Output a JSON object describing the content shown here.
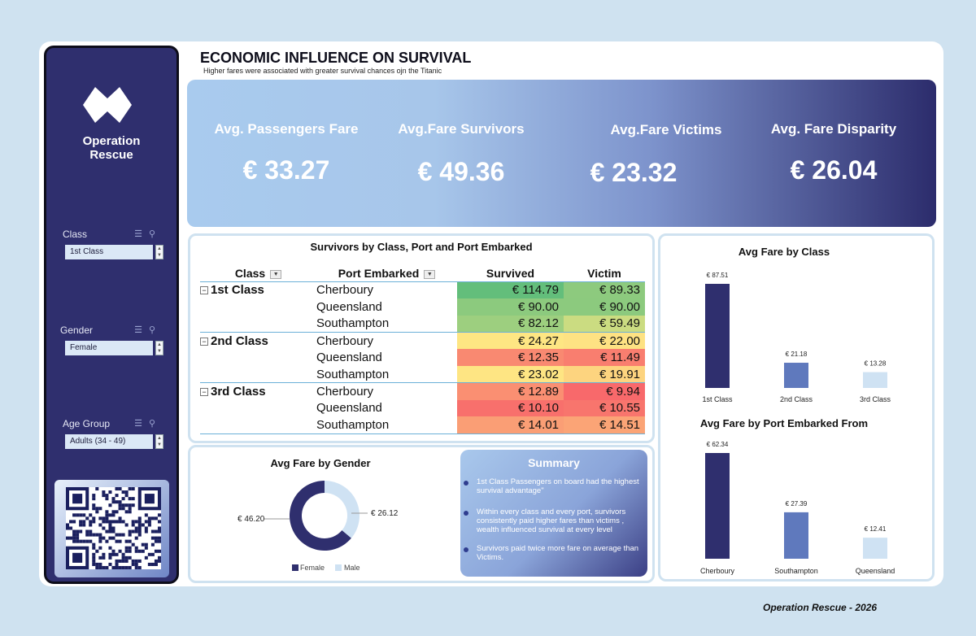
{
  "sidebar": {
    "brand": "Operation Rescue",
    "brand_lines": [
      "Operation",
      "Rescue"
    ],
    "slicers": [
      {
        "label": "Class",
        "value": "1st Class"
      },
      {
        "label": "Gender",
        "value": "Female"
      },
      {
        "label": "Age Group",
        "value": "Adults (34 - 49)"
      }
    ]
  },
  "header": {
    "title": "ECONOMIC INFLUENCE ON SURVIVAL",
    "subtitle": "Higher fares were associated with greater survival chances ojn the Titanic"
  },
  "kpis": [
    {
      "label": "Avg. Passengers Fare",
      "value": "€ 33.27"
    },
    {
      "label": "Avg.Fare Survivors",
      "value": "€ 49.36"
    },
    {
      "label": "Avg.Fare Victims",
      "value": "€ 23.32"
    },
    {
      "label": "Avg. Fare Disparity",
      "value": "€ 26.04"
    }
  ],
  "colors": {
    "navy": "#2f2f6e",
    "mid": "#5f79bd",
    "light": "#cfe2f3"
  },
  "pivot": {
    "title": "Survivors by Class, Port and Port Embarked",
    "headers": {
      "class": "Class",
      "port": "Port Embarked",
      "survived": "Survived",
      "victim": "Victim"
    },
    "rows": [
      {
        "cls": "1st Class",
        "port": "Cherboury",
        "survived": "€ 114.79",
        "victim": "€ 89.33",
        "sc": "#63be7b",
        "vc": "#8dca7e"
      },
      {
        "cls": "",
        "port": "Queensland",
        "survived": "€ 90.00",
        "victim": "€ 90.00",
        "sc": "#8cca7e",
        "vc": "#8cca7e"
      },
      {
        "cls": "",
        "port": "Southampton",
        "survived": "€ 82.12",
        "victim": "€ 59.49",
        "sc": "#9dcf7f",
        "vc": "#cbdc81"
      },
      {
        "cls": "2nd Class",
        "port": "Cherboury",
        "survived": "€ 24.27",
        "victim": "€ 22.00",
        "sc": "#fee683",
        "vc": "#fee283"
      },
      {
        "cls": "",
        "port": "Queensland",
        "survived": "€ 12.35",
        "victim": "€ 11.49",
        "sc": "#f98971",
        "vc": "#f97e6f"
      },
      {
        "cls": "",
        "port": "Southampton",
        "survived": "€ 23.02",
        "victim": "€ 19.91",
        "sc": "#fee583",
        "vc": "#fdd47f"
      },
      {
        "cls": "3rd Class",
        "port": "Cherboury",
        "survived": "€ 12.89",
        "victim": "€ 9.94",
        "sc": "#fa8f72",
        "vc": "#f8696b"
      },
      {
        "cls": "",
        "port": "Queensland",
        "survived": "€ 10.10",
        "victim": "€ 10.55",
        "sc": "#f8706c",
        "vc": "#f8756d"
      },
      {
        "cls": "",
        "port": "Southampton",
        "survived": "€ 14.01",
        "victim": "€ 14.51",
        "sc": "#fa9e75",
        "vc": "#fba476"
      }
    ]
  },
  "summary": {
    "title": "Summary",
    "points": [
      "1st Class Passengers on board had the highest survival advantage\"",
      "Within every class and every port, survivors consistently paid higher fares than victims , wealth influenced survival at every level",
      "Survivors paid twice more fare on average than Victims."
    ]
  },
  "chart_data": [
    {
      "type": "pie",
      "title": "Avg Fare by Gender",
      "categories": [
        "Female",
        "Male"
      ],
      "values": [
        46.2,
        26.12
      ],
      "labels": [
        "€ 46.20",
        "€ 26.12"
      ],
      "colors": [
        "#2f2f6e",
        "#cfe2f3"
      ],
      "legend": "bottom"
    },
    {
      "type": "bar",
      "title": "Avg Fare by Class",
      "categories": [
        "1st Class",
        "2nd Class",
        "3rd Class"
      ],
      "values": [
        87.51,
        21.18,
        13.28
      ],
      "labels": [
        "€ 87.51",
        "€ 21.18",
        "€ 13.28"
      ],
      "colors": [
        "#2f2f6e",
        "#5f79bd",
        "#cfe2f3"
      ],
      "ylim": [
        0,
        87.51
      ]
    },
    {
      "type": "bar",
      "title": "Avg Fare by Port Embarked From",
      "categories": [
        "Cherboury",
        "Southampton",
        "Queensland"
      ],
      "values": [
        62.34,
        27.39,
        12.41
      ],
      "labels": [
        "€ 62.34",
        "€ 27.39",
        "€ 12.41"
      ],
      "colors": [
        "#2f2f6e",
        "#5f79bd",
        "#cfe2f3"
      ],
      "ylim": [
        0,
        62.34
      ]
    }
  ],
  "footer": "Operation Rescue - 2026"
}
